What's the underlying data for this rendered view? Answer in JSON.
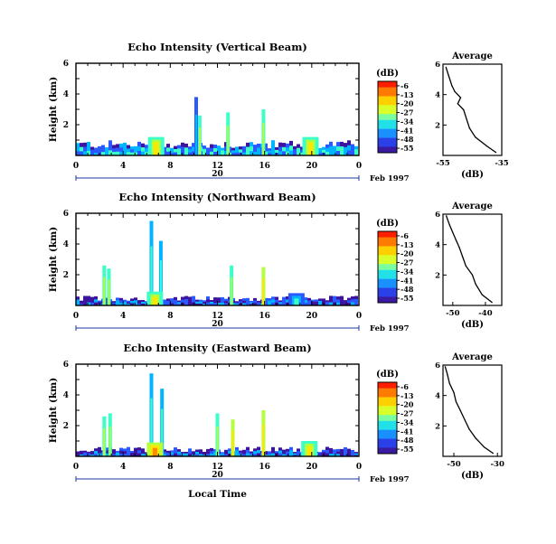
{
  "chart_data": [
    {
      "type": "heatmap",
      "title": "Echo Intensity (Vertical Beam)",
      "ylabel": "Height (km)",
      "xlabel": "",
      "x_ticks": [
        "0",
        "4",
        "8",
        "12",
        "16",
        "20",
        "0"
      ],
      "y_ticks": [
        "2",
        "4",
        "6"
      ],
      "xlim": [
        0,
        24
      ],
      "ylim": [
        0,
        6
      ],
      "date_label": "20",
      "date_suffix": "Feb 1997",
      "colorbar": {
        "title": "(dB)",
        "levels": [
          "-6",
          "-13",
          "-20",
          "-27",
          "-34",
          "-41",
          "-48",
          "-55"
        ],
        "colors": [
          "#ff2a00",
          "#ff8c00",
          "#ffe600",
          "#b4ff3c",
          "#3cffc8",
          "#00b4ff",
          "#2a5aff",
          "#3c14a0"
        ]
      },
      "features": [
        {
          "kind": "base_layer",
          "x": [
            0,
            24
          ],
          "top_km": 0.8,
          "level": "-41"
        },
        {
          "kind": "spike",
          "x": 10.2,
          "top_km": 3.8,
          "level": "-48"
        },
        {
          "kind": "spike",
          "x": 10.5,
          "top_km": 2.6,
          "level": "-34"
        },
        {
          "kind": "spike",
          "x": 12.9,
          "top_km": 2.8,
          "level": "-34"
        },
        {
          "kind": "spike",
          "x": 15.9,
          "top_km": 3.0,
          "level": "-34"
        },
        {
          "kind": "hotspot",
          "x": 6.8,
          "top_km": 1.2,
          "level": "-20"
        },
        {
          "kind": "hotspot",
          "x": 19.9,
          "top_km": 1.2,
          "level": "-20"
        }
      ],
      "average_profile": {
        "title": "Average",
        "xlabel": "(dB)",
        "x_ticks": [
          "-55",
          "-35"
        ],
        "xlim": [
          -55,
          -35
        ],
        "y_ticks": [
          "2",
          "4",
          "6"
        ],
        "ylim": [
          0,
          6
        ],
        "points": [
          [
            -37,
            0.2
          ],
          [
            -40,
            0.6
          ],
          [
            -44,
            1.2
          ],
          [
            -46,
            1.8
          ],
          [
            -47,
            2.4
          ],
          [
            -48,
            3.0
          ],
          [
            -50,
            3.4
          ],
          [
            -49,
            3.8
          ],
          [
            -51,
            4.2
          ],
          [
            -52,
            4.6
          ],
          [
            -53,
            5.2
          ],
          [
            -54,
            5.8
          ]
        ]
      }
    },
    {
      "type": "heatmap",
      "title": "Echo Intensity (Northward Beam)",
      "ylabel": "Height (km)",
      "xlabel": "",
      "x_ticks": [
        "0",
        "4",
        "8",
        "12",
        "16",
        "20",
        "0"
      ],
      "y_ticks": [
        "2",
        "4",
        "6"
      ],
      "xlim": [
        0,
        24
      ],
      "ylim": [
        0,
        6
      ],
      "date_label": "20",
      "date_suffix": "Feb 1997",
      "colorbar": {
        "title": "(dB)",
        "levels": [
          "-6",
          "-13",
          "-20",
          "-27",
          "-34",
          "-41",
          "-48",
          "-55"
        ],
        "colors": [
          "#ff2a00",
          "#ff8c00",
          "#ffe600",
          "#b4ff3c",
          "#3cffc8",
          "#00b4ff",
          "#2a5aff",
          "#3c14a0"
        ]
      },
      "features": [
        {
          "kind": "base_layer",
          "x": [
            0,
            24
          ],
          "top_km": 0.5,
          "level": "-48"
        },
        {
          "kind": "spike",
          "x": 2.4,
          "top_km": 2.6,
          "level": "-34"
        },
        {
          "kind": "spike",
          "x": 2.8,
          "top_km": 2.4,
          "level": "-34"
        },
        {
          "kind": "spike",
          "x": 6.4,
          "top_km": 5.5,
          "level": "-41"
        },
        {
          "kind": "spike",
          "x": 7.2,
          "top_km": 4.2,
          "level": "-41"
        },
        {
          "kind": "spike",
          "x": 13.2,
          "top_km": 2.6,
          "level": "-34"
        },
        {
          "kind": "spike",
          "x": 15.9,
          "top_km": 2.5,
          "level": "-27"
        },
        {
          "kind": "hotspot",
          "x": 6.7,
          "top_km": 0.9,
          "level": "-20"
        },
        {
          "kind": "hotspot",
          "x": 18.7,
          "top_km": 0.8,
          "level": "-34"
        }
      ],
      "average_profile": {
        "title": "Average",
        "xlabel": "(dB)",
        "x_ticks": [
          "-50",
          "-40"
        ],
        "xlim": [
          -53,
          -35
        ],
        "y_ticks": [
          "2",
          "4",
          "6"
        ],
        "ylim": [
          0,
          6
        ],
        "points": [
          [
            -38,
            0.2
          ],
          [
            -41,
            0.7
          ],
          [
            -43,
            1.4
          ],
          [
            -44,
            2.0
          ],
          [
            -46,
            2.6
          ],
          [
            -47,
            3.2
          ],
          [
            -48,
            3.8
          ],
          [
            -49,
            4.3
          ],
          [
            -50,
            4.8
          ],
          [
            -51,
            5.3
          ],
          [
            -52,
            5.9
          ]
        ]
      }
    },
    {
      "type": "heatmap",
      "title": "Echo Intensity (Eastward Beam)",
      "ylabel": "Height (km)",
      "xlabel": "Local Time",
      "x_ticks": [
        "0",
        "4",
        "8",
        "12",
        "16",
        "20",
        "0"
      ],
      "y_ticks": [
        "2",
        "4",
        "6"
      ],
      "xlim": [
        0,
        24
      ],
      "ylim": [
        0,
        6
      ],
      "date_label": "20",
      "date_suffix": "Feb 1997",
      "colorbar": {
        "title": "(dB)",
        "levels": [
          "-6",
          "-13",
          "-20",
          "-27",
          "-34",
          "-41",
          "-48",
          "-55"
        ],
        "colors": [
          "#ff2a00",
          "#ff8c00",
          "#ffe600",
          "#b4ff3c",
          "#3cffc8",
          "#00b4ff",
          "#2a5aff",
          "#3c14a0"
        ]
      },
      "features": [
        {
          "kind": "base_layer",
          "x": [
            0,
            24
          ],
          "top_km": 0.5,
          "level": "-48"
        },
        {
          "kind": "spike",
          "x": 2.4,
          "top_km": 2.6,
          "level": "-34"
        },
        {
          "kind": "spike",
          "x": 2.9,
          "top_km": 2.8,
          "level": "-34"
        },
        {
          "kind": "spike",
          "x": 6.4,
          "top_km": 5.4,
          "level": "-41"
        },
        {
          "kind": "spike",
          "x": 7.3,
          "top_km": 4.4,
          "level": "-41"
        },
        {
          "kind": "spike",
          "x": 12.0,
          "top_km": 2.8,
          "level": "-34"
        },
        {
          "kind": "spike",
          "x": 13.3,
          "top_km": 2.4,
          "level": "-27"
        },
        {
          "kind": "spike",
          "x": 15.9,
          "top_km": 3.0,
          "level": "-27"
        },
        {
          "kind": "hotspot",
          "x": 6.7,
          "top_km": 0.9,
          "level": "-13"
        },
        {
          "kind": "hotspot",
          "x": 19.8,
          "top_km": 1.0,
          "level": "-20"
        }
      ],
      "average_profile": {
        "title": "Average",
        "xlabel": "(dB)",
        "x_ticks": [
          "-50",
          "-30"
        ],
        "xlim": [
          -55,
          -28
        ],
        "y_ticks": [
          "2",
          "4",
          "6"
        ],
        "ylim": [
          0,
          6
        ],
        "points": [
          [
            -32,
            0.2
          ],
          [
            -36,
            0.6
          ],
          [
            -40,
            1.2
          ],
          [
            -43,
            1.8
          ],
          [
            -45,
            2.4
          ],
          [
            -47,
            3.0
          ],
          [
            -49,
            3.6
          ],
          [
            -50,
            4.2
          ],
          [
            -52,
            4.8
          ],
          [
            -53,
            5.4
          ],
          [
            -54,
            5.9
          ]
        ]
      }
    }
  ]
}
